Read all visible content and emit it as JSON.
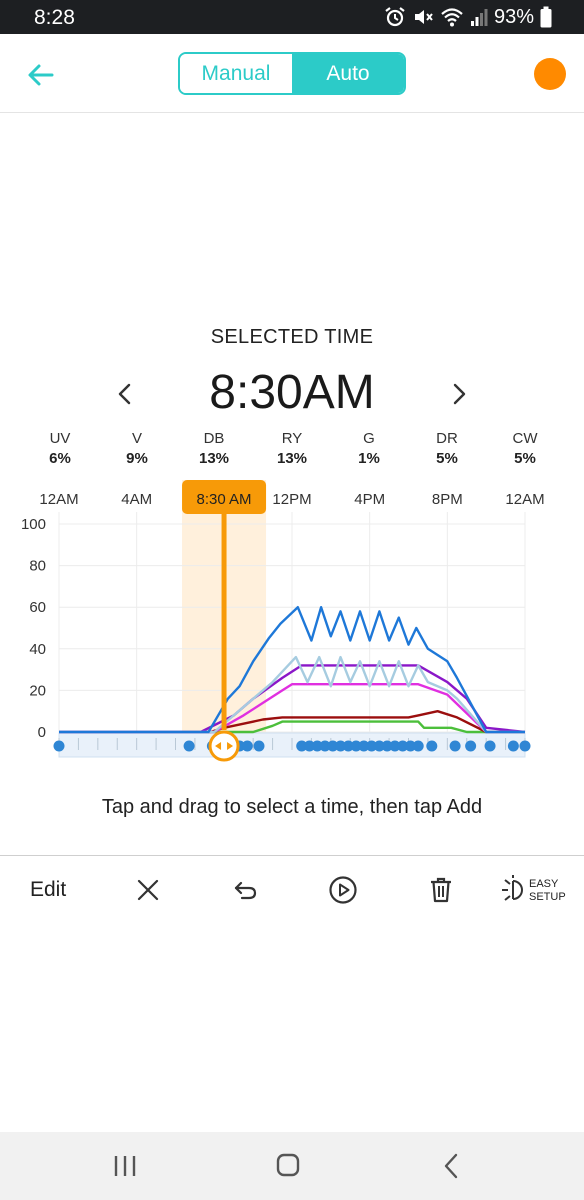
{
  "status_bar": {
    "time": "8:28",
    "battery": "93%",
    "icons": [
      "alarm-icon",
      "mute-icon",
      "wifi-icon",
      "signal-icon",
      "battery-icon"
    ]
  },
  "header": {
    "back_icon": "arrow-left-icon",
    "mode_toggle": {
      "options": [
        "Manual",
        "Auto"
      ],
      "selected": "Auto"
    },
    "status_dot_color": "#FF8A00"
  },
  "schedule": {
    "title": "SELECTED TIME",
    "selected_time": "8:30AM",
    "prev_icon": "chevron-left-icon",
    "next_icon": "chevron-right-icon",
    "channels": [
      {
        "name": "UV",
        "percent": "6%"
      },
      {
        "name": "V",
        "percent": "9%"
      },
      {
        "name": "DB",
        "percent": "13%"
      },
      {
        "name": "RY",
        "percent": "13%"
      },
      {
        "name": "G",
        "percent": "1%"
      },
      {
        "name": "DR",
        "percent": "5%"
      },
      {
        "name": "CW",
        "percent": "5%"
      }
    ],
    "hint": "Tap and drag to select a time, then tap Add"
  },
  "chart_data": {
    "type": "line",
    "x_unit": "hours",
    "x_tick_labels": [
      "12AM",
      "4AM",
      "8:30 AM",
      "12PM",
      "4PM",
      "8PM",
      "12AM"
    ],
    "x_tick_values": [
      0,
      4,
      8.5,
      12,
      16,
      20,
      24
    ],
    "y_tick_labels": [
      "100",
      "80",
      "60",
      "40",
      "20",
      "0"
    ],
    "ylim": [
      0,
      100
    ],
    "xlim": [
      0,
      24
    ],
    "selected_time_hours": 8.5,
    "grid": true,
    "series": [
      {
        "color": "#1E78D8",
        "x": [
          0,
          7.7,
          8.7,
          9.3,
          10,
          10.8,
          11.4,
          12.3,
          13,
          13.5,
          14,
          14.5,
          15,
          15.5,
          16,
          16.5,
          17,
          17.5,
          18,
          18.4,
          19,
          20,
          20.5,
          22,
          24
        ],
        "y": [
          0,
          0,
          16,
          22,
          34,
          45,
          52,
          60,
          44,
          60,
          46,
          58,
          44,
          58,
          44,
          58,
          44,
          55,
          42,
          50,
          40,
          34,
          26,
          0,
          0
        ]
      },
      {
        "color": "#A6CCE0",
        "x": [
          0,
          8,
          9.5,
          11,
          12.2,
          12.8,
          13.4,
          14,
          14.5,
          15,
          15.5,
          16,
          16.5,
          17,
          17.5,
          18,
          18.5,
          19,
          20,
          20.5,
          22,
          24
        ],
        "y": [
          0,
          0,
          12,
          24,
          36,
          24,
          36,
          22,
          36,
          24,
          34,
          22,
          34,
          22,
          34,
          22,
          32,
          24,
          20,
          16,
          0,
          0
        ]
      },
      {
        "color": "#8A17C8",
        "x": [
          0,
          7.3,
          9,
          10,
          11.5,
          12.5,
          18.5,
          20,
          21,
          22,
          24
        ],
        "y": [
          0,
          0,
          8,
          16,
          26,
          32,
          32,
          24,
          16,
          2,
          0
        ]
      },
      {
        "color": "#E02FE0",
        "x": [
          0,
          8,
          9.5,
          10.5,
          11.5,
          12,
          18.5,
          20,
          22,
          24
        ],
        "y": [
          0,
          0,
          8,
          14,
          20,
          23,
          23,
          18,
          0,
          0
        ]
      },
      {
        "color": "#9B0E0E",
        "x": [
          0,
          7.8,
          8.5,
          9.5,
          10.5,
          11.5,
          18,
          18.5,
          19.5,
          20.5,
          22,
          24
        ],
        "y": [
          0,
          0,
          2,
          4,
          6,
          7,
          7,
          8,
          10,
          7,
          0,
          0
        ]
      },
      {
        "color": "#4CBF3B",
        "x": [
          0,
          9,
          10,
          11,
          11.5,
          18.5,
          18.8,
          20.2,
          21,
          22,
          24
        ],
        "y": [
          0,
          0,
          0,
          3,
          5,
          5,
          2,
          2,
          0,
          0,
          0
        ]
      }
    ],
    "schedule_points_hours": [
      0,
      6.7,
      7.9,
      8.3,
      8.7,
      9,
      9.3,
      9.7,
      10.3,
      12.5,
      12.9,
      13.3,
      13.7,
      14.1,
      14.5,
      14.9,
      15.3,
      15.7,
      16.1,
      16.5,
      16.9,
      17.3,
      17.7,
      18.1,
      18.5,
      19.2,
      20.4,
      21.2,
      22.2,
      23.4,
      24
    ]
  },
  "toolbar": {
    "edit_label": "Edit",
    "easy_setup_line1": "EASY",
    "easy_setup_line2": "SETUP",
    "icons": [
      "close-icon",
      "undo-icon",
      "play-icon",
      "trash-icon",
      "easy-setup-icon"
    ]
  },
  "nav_bar": {
    "icons": [
      "recent-apps-icon",
      "home-icon",
      "back-icon"
    ]
  }
}
